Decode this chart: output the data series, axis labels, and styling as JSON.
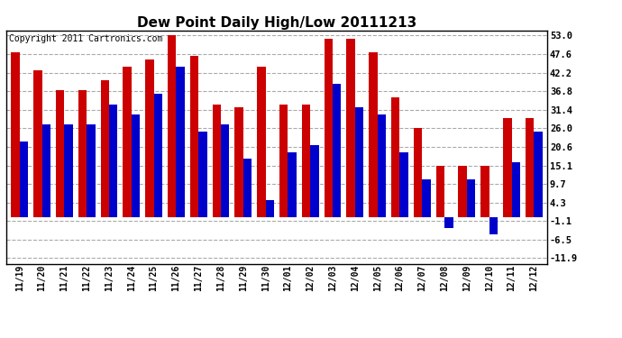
{
  "title": "Dew Point Daily High/Low 20111213",
  "copyright": "Copyright 2011 Cartronics.com",
  "dates": [
    "11/19",
    "11/20",
    "11/21",
    "11/22",
    "11/23",
    "11/24",
    "11/25",
    "11/26",
    "11/27",
    "11/28",
    "11/29",
    "11/30",
    "12/01",
    "12/02",
    "12/03",
    "12/04",
    "12/05",
    "12/06",
    "12/07",
    "12/08",
    "12/09",
    "12/10",
    "12/11",
    "12/12"
  ],
  "highs": [
    48,
    43,
    37,
    37,
    40,
    44,
    46,
    53,
    47,
    33,
    32,
    44,
    33,
    33,
    52,
    52,
    48,
    35,
    26,
    15,
    15,
    15,
    29,
    29
  ],
  "lows": [
    22,
    27,
    27,
    27,
    33,
    30,
    36,
    44,
    25,
    27,
    17,
    5,
    19,
    21,
    39,
    32,
    30,
    19,
    11,
    -3,
    11,
    -5,
    16,
    25
  ],
  "bar_color_high": "#cc0000",
  "bar_color_low": "#0000cc",
  "background_color": "#ffffff",
  "grid_color": "#aaaaaa",
  "yticks": [
    -11.9,
    -6.5,
    -1.1,
    4.3,
    9.7,
    15.1,
    20.6,
    26.0,
    31.4,
    36.8,
    42.2,
    47.6,
    53.0
  ],
  "ylim": [
    -13.5,
    54.5
  ],
  "title_fontsize": 11,
  "copyright_fontsize": 7,
  "bar_width": 0.38
}
